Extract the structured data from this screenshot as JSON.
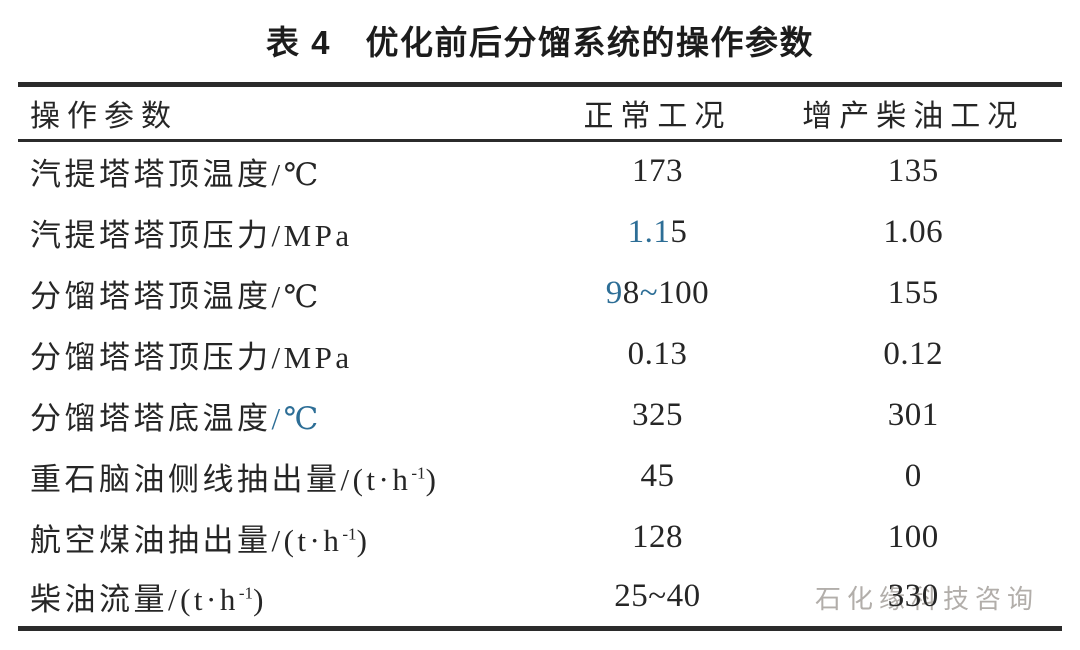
{
  "title": "表 4　优化前后分馏系统的操作参数",
  "watermark": "石化缘科技咨询",
  "colors": {
    "text": "#262626",
    "accent_blue": "#2d6e96",
    "watermark_gray": "#b2aeaa",
    "rule": "#2b2b2b"
  },
  "table": {
    "headers": [
      "操作参数",
      "正常工况",
      "增产柴油工况"
    ],
    "rows": [
      {
        "label": [
          {
            "t": "汽提塔塔顶温度/℃"
          }
        ],
        "normal": [
          {
            "t": "173"
          }
        ],
        "diesel": [
          {
            "t": "135"
          }
        ]
      },
      {
        "label": [
          {
            "t": "汽提塔塔顶压力/MPa"
          }
        ],
        "normal": [
          {
            "t": "1.1",
            "blue": true
          },
          {
            "t": "5"
          }
        ],
        "diesel": [
          {
            "t": "1.06"
          }
        ]
      },
      {
        "label": [
          {
            "t": "分馏塔塔顶温度/℃"
          }
        ],
        "normal": [
          {
            "t": "9",
            "blue": true
          },
          {
            "t": "8"
          },
          {
            "t": "~",
            "blue": true
          },
          {
            "t": "100"
          }
        ],
        "diesel": [
          {
            "t": "155"
          }
        ]
      },
      {
        "label": [
          {
            "t": "分馏塔塔顶压力/MPa"
          }
        ],
        "normal": [
          {
            "t": "0.13"
          }
        ],
        "diesel": [
          {
            "t": "0.12"
          }
        ]
      },
      {
        "label": [
          {
            "t": "分馏塔塔底温度"
          },
          {
            "t": "/℃",
            "blue": true
          }
        ],
        "normal": [
          {
            "t": "325"
          }
        ],
        "diesel": [
          {
            "t": "301"
          }
        ]
      },
      {
        "label": [
          {
            "t": "重石脑油侧线抽出量/(t·h"
          },
          {
            "t": "-1",
            "sup": true
          },
          {
            "t": ")"
          }
        ],
        "normal": [
          {
            "t": "45"
          }
        ],
        "diesel": [
          {
            "t": "0"
          }
        ]
      },
      {
        "label": [
          {
            "t": "航空煤油抽出量/(t·h"
          },
          {
            "t": "-1",
            "sup": true
          },
          {
            "t": ")"
          }
        ],
        "normal": [
          {
            "t": "128"
          }
        ],
        "diesel": [
          {
            "t": "100"
          }
        ]
      },
      {
        "label": [
          {
            "t": "柴油流量/(t·h"
          },
          {
            "t": "-1",
            "sup": true
          },
          {
            "t": ")"
          }
        ],
        "normal": [
          {
            "t": "25~40"
          }
        ],
        "diesel": [
          {
            "t": "330"
          }
        ]
      }
    ]
  }
}
